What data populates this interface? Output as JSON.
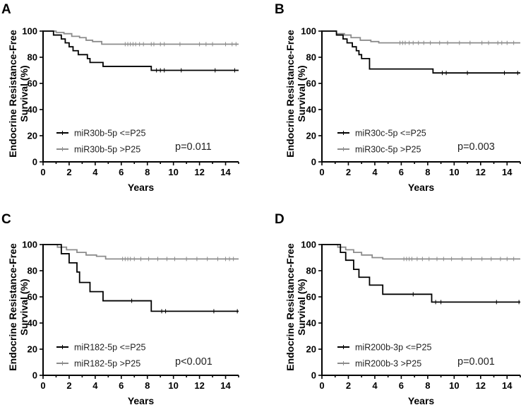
{
  "figure": {
    "colors": {
      "low": "#000000",
      "high": "#8c8c8c"
    }
  },
  "chart_data": [
    {
      "type": "line",
      "panel": "A",
      "xlabel": "Years",
      "ylabel": [
        "Endocrine Resistance-Free",
        "Survival (%)"
      ],
      "xlim": [
        0,
        15
      ],
      "ylim": [
        0,
        100
      ],
      "xticks": [
        0,
        2,
        4,
        6,
        8,
        10,
        12,
        14
      ],
      "yticks": [
        0,
        20,
        40,
        60,
        80,
        100
      ],
      "legend_position": "bottom-left",
      "pvalue": "p=0.011",
      "series": [
        {
          "name": "miR30b-5p <=P25",
          "color": "#000000",
          "steps": [
            [
              0,
              100
            ],
            [
              0.8,
              97
            ],
            [
              1.4,
              94
            ],
            [
              1.7,
              91
            ],
            [
              2.0,
              88
            ],
            [
              2.3,
              85
            ],
            [
              2.7,
              82
            ],
            [
              3.4,
              79
            ],
            [
              3.6,
              76
            ],
            [
              4.6,
              73
            ],
            [
              8.3,
              70
            ],
            [
              15,
              70
            ]
          ],
          "censored": [
            8.7,
            9.0,
            9.3,
            10.6,
            13.2,
            14.7
          ]
        },
        {
          "name": "miR30b-5p >P25",
          "color": "#8c8c8c",
          "steps": [
            [
              0,
              100
            ],
            [
              1.0,
              99
            ],
            [
              1.6,
              98
            ],
            [
              2.2,
              96
            ],
            [
              2.8,
              95
            ],
            [
              3.3,
              93
            ],
            [
              3.8,
              92
            ],
            [
              4.5,
              90
            ],
            [
              15,
              90
            ]
          ],
          "censored": [
            6.3,
            6.5,
            6.7,
            6.9,
            7.1,
            7.4,
            7.7,
            8.3,
            8.5,
            9.0,
            9.3,
            10.5,
            12.0,
            12.5,
            13.0,
            14.0,
            14.5,
            14.8
          ]
        }
      ]
    },
    {
      "type": "line",
      "panel": "B",
      "xlabel": "Years",
      "ylabel": [
        "Endocrine Resistance-Free",
        "Survival (%)"
      ],
      "xlim": [
        0,
        15
      ],
      "ylim": [
        0,
        100
      ],
      "xticks": [
        0,
        2,
        4,
        6,
        8,
        10,
        12,
        14
      ],
      "yticks": [
        0,
        20,
        40,
        60,
        80,
        100
      ],
      "legend_position": "bottom-left",
      "pvalue": "p=0.003",
      "series": [
        {
          "name": "miR30c-5p <=P25",
          "color": "#000000",
          "steps": [
            [
              0,
              100
            ],
            [
              1.1,
              97
            ],
            [
              1.6,
              94
            ],
            [
              1.9,
              91
            ],
            [
              2.3,
              88
            ],
            [
              2.6,
              85
            ],
            [
              2.8,
              82
            ],
            [
              3.0,
              79
            ],
            [
              3.6,
              71
            ],
            [
              8.4,
              68
            ],
            [
              15,
              68
            ]
          ],
          "censored": [
            9.1,
            9.4,
            11.0,
            13.8,
            14.8
          ]
        },
        {
          "name": "miR30c-5p >P25",
          "color": "#8c8c8c",
          "steps": [
            [
              0,
              100
            ],
            [
              1.1,
              98
            ],
            [
              1.7,
              97
            ],
            [
              2.2,
              95
            ],
            [
              2.9,
              93
            ],
            [
              3.7,
              92
            ],
            [
              4.3,
              91
            ],
            [
              15,
              91
            ]
          ],
          "censored": [
            5.9,
            6.1,
            6.3,
            6.6,
            6.9,
            7.3,
            7.7,
            8.2,
            8.9,
            9.5,
            10.4,
            11.2,
            12.1,
            12.6,
            13.3,
            13.6,
            14.0,
            14.5
          ]
        }
      ]
    },
    {
      "type": "line",
      "panel": "C",
      "xlabel": "Years",
      "ylabel": [
        "Endocrine Resistance-Free",
        "Survival (%)"
      ],
      "xlim": [
        0,
        15
      ],
      "ylim": [
        0,
        100
      ],
      "xticks": [
        0,
        2,
        4,
        6,
        8,
        10,
        12,
        14
      ],
      "yticks": [
        0,
        20,
        40,
        60,
        80,
        100
      ],
      "legend_position": "bottom-left",
      "pvalue": "p<0.001",
      "series": [
        {
          "name": "miR182-5p <=P25",
          "color": "#000000",
          "steps": [
            [
              0,
              100
            ],
            [
              1.4,
              93
            ],
            [
              2.0,
              86
            ],
            [
              2.6,
              79
            ],
            [
              2.8,
              71
            ],
            [
              3.6,
              64
            ],
            [
              4.6,
              57
            ],
            [
              8.3,
              49
            ],
            [
              15,
              49
            ]
          ],
          "censored": [
            6.8,
            9.1,
            9.4,
            13.1,
            14.9
          ]
        },
        {
          "name": "miR182-5p >P25",
          "color": "#8c8c8c",
          "steps": [
            [
              0,
              100
            ],
            [
              1.1,
              98
            ],
            [
              1.8,
              96
            ],
            [
              2.6,
              94
            ],
            [
              3.3,
              92
            ],
            [
              4.1,
              91
            ],
            [
              4.8,
              89
            ],
            [
              15,
              89
            ]
          ],
          "censored": [
            6.1,
            6.3,
            6.5,
            6.7,
            7.0,
            7.5,
            8.1,
            8.8,
            9.5,
            10.1,
            11.0,
            11.8,
            12.6,
            13.4,
            14.0,
            14.3,
            14.6
          ]
        }
      ]
    },
    {
      "type": "line",
      "panel": "D",
      "xlabel": "Years",
      "ylabel": [
        "Endocrine Resistance-Free",
        "Survival (%)"
      ],
      "xlim": [
        0,
        15
      ],
      "ylim": [
        0,
        100
      ],
      "xticks": [
        0,
        2,
        4,
        6,
        8,
        10,
        12,
        14
      ],
      "yticks": [
        0,
        20,
        40,
        60,
        80,
        100
      ],
      "legend_position": "bottom-left",
      "pvalue": "p=0.001",
      "series": [
        {
          "name": "miR200b-3p <=P25",
          "color": "#000000",
          "steps": [
            [
              0,
              100
            ],
            [
              1.4,
              94
            ],
            [
              1.8,
              88
            ],
            [
              2.4,
              81
            ],
            [
              2.8,
              75
            ],
            [
              3.6,
              69
            ],
            [
              4.6,
              62
            ],
            [
              8.3,
              56
            ],
            [
              15,
              56
            ]
          ],
          "censored": [
            6.9,
            8.6,
            9.0,
            13.2,
            14.9
          ]
        },
        {
          "name": "miR200b-3 >P25",
          "color": "#8c8c8c",
          "steps": [
            [
              0,
              100
            ],
            [
              1.2,
              98
            ],
            [
              1.8,
              96
            ],
            [
              2.4,
              94
            ],
            [
              3.0,
              92
            ],
            [
              3.8,
              90
            ],
            [
              4.6,
              89
            ],
            [
              15,
              89
            ]
          ],
          "censored": [
            6.2,
            6.4,
            6.6,
            6.8,
            7.2,
            7.6,
            8.1,
            8.7,
            9.2,
            9.8,
            10.6,
            11.3,
            12.1,
            12.8,
            13.5,
            14.0,
            14.5
          ]
        }
      ]
    }
  ]
}
